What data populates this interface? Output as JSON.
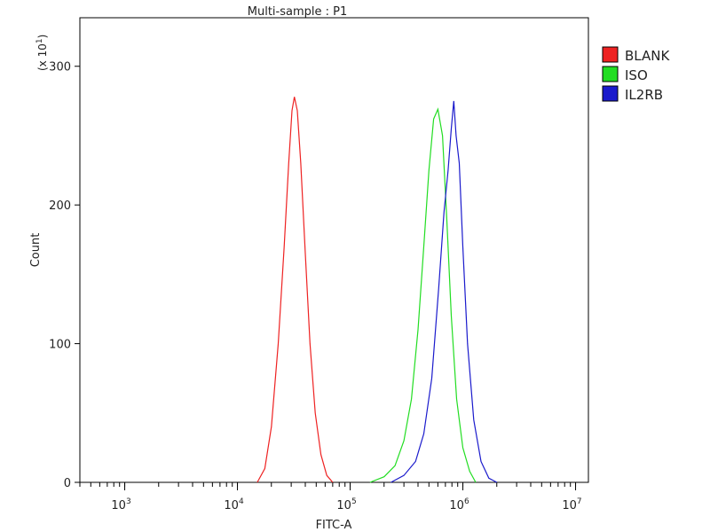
{
  "chart_data": {
    "type": "line",
    "title": "Multi-sample : P1",
    "xlabel": "FITC-A",
    "ylabel": "Count",
    "y_multiplier_label": "(x 10",
    "y_multiplier_exp": "1",
    "x_scale": "log",
    "xlim": [
      400,
      13000000
    ],
    "ylim": [
      0,
      335
    ],
    "x_ticks": [
      {
        "base": "10",
        "exp": "3",
        "value": 1000
      },
      {
        "base": "10",
        "exp": "4",
        "value": 10000
      },
      {
        "base": "10",
        "exp": "5",
        "value": 100000
      },
      {
        "base": "10",
        "exp": "6",
        "value": 1000000
      },
      {
        "base": "10",
        "exp": "7",
        "value": 10000000
      }
    ],
    "y_ticks": [
      {
        "label": "0",
        "value": 0
      },
      {
        "label": "100",
        "value": 100
      },
      {
        "label": "200",
        "value": 200
      },
      {
        "label": "300",
        "value": 300
      }
    ],
    "grid": false,
    "legend_position": "top-right",
    "series": [
      {
        "name": "BLANK",
        "color": "#ee2222",
        "points": [
          [
            15000,
            0
          ],
          [
            17500,
            10
          ],
          [
            20000,
            40
          ],
          [
            23000,
            100
          ],
          [
            26000,
            170
          ],
          [
            28500,
            230
          ],
          [
            30500,
            268
          ],
          [
            32000,
            278
          ],
          [
            34000,
            268
          ],
          [
            36500,
            230
          ],
          [
            40000,
            165
          ],
          [
            44000,
            100
          ],
          [
            49000,
            50
          ],
          [
            55000,
            20
          ],
          [
            62000,
            5
          ],
          [
            70000,
            0
          ]
        ]
      },
      {
        "name": "ISO",
        "color": "#22dd22",
        "points": [
          [
            150000,
            0
          ],
          [
            200000,
            4
          ],
          [
            250000,
            12
          ],
          [
            300000,
            30
          ],
          [
            350000,
            60
          ],
          [
            400000,
            110
          ],
          [
            450000,
            170
          ],
          [
            500000,
            225
          ],
          [
            550000,
            262
          ],
          [
            600000,
            269
          ],
          [
            660000,
            250
          ],
          [
            720000,
            190
          ],
          [
            790000,
            120
          ],
          [
            880000,
            60
          ],
          [
            1000000,
            25
          ],
          [
            1150000,
            8
          ],
          [
            1300000,
            0
          ]
        ]
      },
      {
        "name": "IL2RB",
        "color": "#1a1acc",
        "points": [
          [
            230000,
            0
          ],
          [
            300000,
            5
          ],
          [
            380000,
            15
          ],
          [
            450000,
            35
          ],
          [
            530000,
            75
          ],
          [
            610000,
            140
          ],
          [
            680000,
            195
          ],
          [
            740000,
            225
          ],
          [
            790000,
            255
          ],
          [
            830000,
            275
          ],
          [
            870000,
            250
          ],
          [
            930000,
            230
          ],
          [
            1000000,
            170
          ],
          [
            1100000,
            100
          ],
          [
            1250000,
            45
          ],
          [
            1450000,
            15
          ],
          [
            1700000,
            3
          ],
          [
            2000000,
            0
          ]
        ]
      }
    ]
  }
}
